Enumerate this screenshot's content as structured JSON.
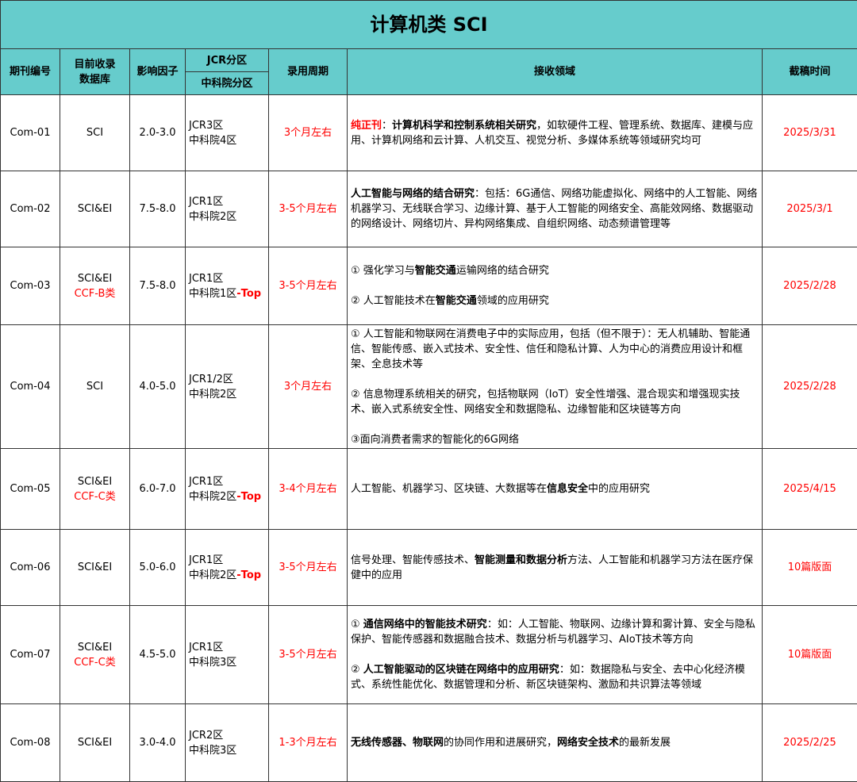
{
  "title": "计算机类 SCI",
  "headers": {
    "id": "期刊编号",
    "db": "目前收录\n数据库",
    "if": "影响因子",
    "jcr": "JCR分区",
    "cas": "中科院分区",
    "period": "录用周期",
    "scope": "接收领域",
    "deadline": "截稿时间"
  },
  "colors": {
    "header_bg": "#66CCCC",
    "accent_red": "#ff0000"
  },
  "rows": [
    {
      "id": "Com-01",
      "db": [
        {
          "t": "SCI"
        }
      ],
      "if": "2.0-3.0",
      "jcr": "JCR3区",
      "cas": [
        {
          "t": "中科院4区"
        }
      ],
      "period": "3个月左右",
      "deadline": "2025/3/31",
      "scope": [
        [
          {
            "t": "纯正刊",
            "b": 1,
            "r": 1
          },
          {
            "t": "："
          },
          {
            "t": "计算机科学和控制系统相关研究",
            "b": 1
          },
          {
            "t": "，如软硬件工程、管理系统、数据库、建模与应用、计算机网络和云计算、人机交互、视觉分析、多媒体系统等领域研究均可"
          }
        ]
      ]
    },
    {
      "id": "Com-02",
      "db": [
        {
          "t": "SCI&EI"
        }
      ],
      "if": "7.5-8.0",
      "jcr": "JCR1区",
      "cas": [
        {
          "t": "中科院2区"
        }
      ],
      "period": "3-5个月左右",
      "deadline": "2025/3/1",
      "scope": [
        [
          {
            "t": "人工智能与网络的结合研究",
            "b": 1
          },
          {
            "t": "：包括：6G通信、网络功能虚拟化、网络中的人工智能、网络机器学习、无线联合学习、边缘计算、基于人工智能的网络安全、高能效网络、数据驱动的网络设计、网络切片、异构网络集成、自组织网络、动态频谱管理等"
          }
        ]
      ]
    },
    {
      "id": "Com-03",
      "db": [
        {
          "t": "SCI&EI"
        },
        {
          "t": "CCF-B类",
          "r": 1
        }
      ],
      "if": "7.5-8.0",
      "jcr": "JCR1区",
      "cas": [
        {
          "t": "中科院1区"
        },
        {
          "t": "-Top",
          "b": 1,
          "r": 1
        }
      ],
      "period": "3-5个月左右",
      "deadline": "2025/2/28",
      "scope": [
        [
          {
            "t": "① 强化学习与"
          },
          {
            "t": "智能交通",
            "b": 1
          },
          {
            "t": "运输网络的结合研究"
          }
        ],
        [
          {
            "t": "② 人工智能技术在"
          },
          {
            "t": "智能交通",
            "b": 1
          },
          {
            "t": "领域的应用研究"
          }
        ]
      ]
    },
    {
      "id": "Com-04",
      "db": [
        {
          "t": "SCI"
        }
      ],
      "if": "4.0-5.0",
      "jcr": "JCR1/2区",
      "cas": [
        {
          "t": "中科院2区"
        }
      ],
      "period": "3个月左右",
      "deadline": "2025/2/28",
      "scope": [
        [
          {
            "t": "① 人工智能和物联网在消费电子中的实际应用，包括（但不限于）：无人机辅助、智能通信、智能传感、嵌入式技术、安全性、信任和隐私计算、人为中心的消费应用设计和框架、全息技术等"
          }
        ],
        [
          {
            "t": "② 信息物理系统相关的研究，包括物联网（IoT）安全性增强、混合现实和增强现实技术、嵌入式系统安全性、网络安全和数据隐私、边缘智能和区块链等方向"
          }
        ],
        [
          {
            "t": "③面向消费者需求的智能化的6G网络"
          }
        ]
      ]
    },
    {
      "id": "Com-05",
      "db": [
        {
          "t": "SCI&EI"
        },
        {
          "t": "CCF-C类",
          "r": 1
        }
      ],
      "if": "6.0-7.0",
      "jcr": "JCR1区",
      "cas": [
        {
          "t": "中科院2区"
        },
        {
          "t": "-Top",
          "b": 1,
          "r": 1
        }
      ],
      "period": "3-4个月左右",
      "deadline": "2025/4/15",
      "scope": [
        [
          {
            "t": "人工智能、机器学习、区块链、大数据等在"
          },
          {
            "t": "信息安全",
            "b": 1
          },
          {
            "t": "中的应用研究"
          }
        ]
      ]
    },
    {
      "id": "Com-06",
      "db": [
        {
          "t": "SCI&EI"
        }
      ],
      "if": "5.0-6.0",
      "jcr": "JCR1区",
      "cas": [
        {
          "t": "中科院2区"
        },
        {
          "t": "-Top",
          "b": 1,
          "r": 1
        }
      ],
      "period": "3-5个月左右",
      "deadline": "10篇版面",
      "scope": [
        [
          {
            "t": "信号处理、智能传感技术、"
          },
          {
            "t": "智能测量和数据分析",
            "b": 1
          },
          {
            "t": "方法、人工智能和机器学习方法在医疗保健中的应用"
          }
        ]
      ]
    },
    {
      "id": "Com-07",
      "db": [
        {
          "t": "SCI&EI"
        },
        {
          "t": "CCF-C类",
          "r": 1
        }
      ],
      "if": "4.5-5.0",
      "jcr": "JCR1区",
      "cas": [
        {
          "t": "中科院3区"
        }
      ],
      "period": "3-5个月左右",
      "deadline": "10篇版面",
      "scope": [
        [
          {
            "t": "① "
          },
          {
            "t": "通信网络中的智能技术研究",
            "b": 1
          },
          {
            "t": "：如：人工智能、物联网、边缘计算和雾计算、安全与隐私保护、智能传感器和数据融合技术、数据分析与机器学习、AIoT技术等方向"
          }
        ],
        [
          {
            "t": "② "
          },
          {
            "t": "人工智能驱动的区块链在网络中的应用研究",
            "b": 1
          },
          {
            "t": "：如：数据隐私与安全、去中心化经济模式、系统性能优化、数据管理和分析、新区块链架构、激励和共识算法等领域"
          }
        ]
      ]
    },
    {
      "id": "Com-08",
      "db": [
        {
          "t": "SCI&EI"
        }
      ],
      "if": "3.0-4.0",
      "jcr": "JCR2区",
      "cas": [
        {
          "t": "中科院3区"
        }
      ],
      "period": "1-3个月左右",
      "deadline": "2025/2/25",
      "scope": [
        [
          {
            "t": "无线传感器、物联网",
            "b": 1
          },
          {
            "t": "的协同作用和进展研究，"
          },
          {
            "t": "网络安全技术",
            "b": 1
          },
          {
            "t": "的最新发展"
          }
        ]
      ]
    }
  ]
}
